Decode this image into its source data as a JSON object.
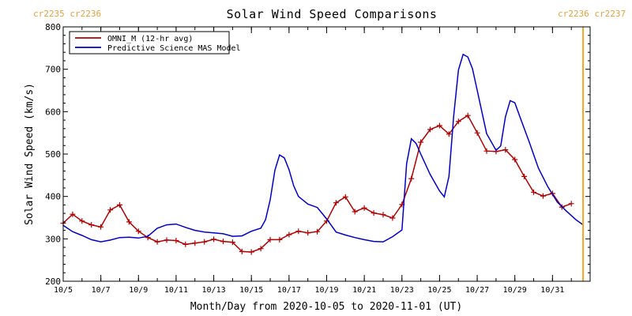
{
  "chart_data": {
    "type": "line",
    "title": "Solar Wind Speed Comparisons",
    "xlabel": "Month/Day from 2020-10-05 to 2020-11-01 (UT)",
    "ylabel": "Solar Wind Speed (km/s)",
    "ylim": [
      200,
      800
    ],
    "yticks": [
      200,
      300,
      400,
      500,
      600,
      700,
      800
    ],
    "xlim": [
      "2020-10-05",
      "2020-11-02"
    ],
    "xticks": [
      {
        "label": "10/5",
        "date": "2020-10-05"
      },
      {
        "label": "10/7",
        "date": "2020-10-07"
      },
      {
        "label": "10/9",
        "date": "2020-10-09"
      },
      {
        "label": "10/11",
        "date": "2020-10-11"
      },
      {
        "label": "10/13",
        "date": "2020-10-13"
      },
      {
        "label": "10/15",
        "date": "2020-10-15"
      },
      {
        "label": "10/17",
        "date": "2020-10-17"
      },
      {
        "label": "10/19",
        "date": "2020-10-19"
      },
      {
        "label": "10/21",
        "date": "2020-10-21"
      },
      {
        "label": "10/23",
        "date": "2020-10-23"
      },
      {
        "label": "10/25",
        "date": "2020-10-25"
      },
      {
        "label": "10/27",
        "date": "2020-10-27"
      },
      {
        "label": "10/29",
        "date": "2020-10-29"
      },
      {
        "label": "10/31",
        "date": "2020-10-31"
      }
    ],
    "carrington_labels": {
      "left": "cr2235 cr2236",
      "right": "cr2236 cr2237"
    },
    "rotation_marker": {
      "date": "2020-11-01 15:00",
      "color": "#f5a623"
    },
    "legend_position": "top-left",
    "grid": false,
    "series": [
      {
        "name": "OMNI_M (12-hr avg)",
        "color": "#b00000",
        "marker": "plus",
        "points": [
          [
            "2020-10-05 00:00",
            337
          ],
          [
            "2020-10-05 12:00",
            358
          ],
          [
            "2020-10-06 00:00",
            342
          ],
          [
            "2020-10-06 12:00",
            333
          ],
          [
            "2020-10-07 00:00",
            328
          ],
          [
            "2020-10-07 12:00",
            368
          ],
          [
            "2020-10-08 00:00",
            380
          ],
          [
            "2020-10-08 12:00",
            340
          ],
          [
            "2020-10-09 00:00",
            318
          ],
          [
            "2020-10-09 12:00",
            303
          ],
          [
            "2020-10-10 00:00",
            293
          ],
          [
            "2020-10-10 12:00",
            297
          ],
          [
            "2020-10-11 00:00",
            296
          ],
          [
            "2020-10-11 12:00",
            287
          ],
          [
            "2020-10-12 00:00",
            290
          ],
          [
            "2020-10-12 12:00",
            293
          ],
          [
            "2020-10-13 00:00",
            299
          ],
          [
            "2020-10-13 12:00",
            294
          ],
          [
            "2020-10-14 00:00",
            292
          ],
          [
            "2020-10-14 12:00",
            270
          ],
          [
            "2020-10-15 00:00",
            269
          ],
          [
            "2020-10-15 12:00",
            277
          ],
          [
            "2020-10-16 00:00",
            298
          ],
          [
            "2020-10-16 12:00",
            298
          ],
          [
            "2020-10-17 00:00",
            310
          ],
          [
            "2020-10-17 12:00",
            318
          ],
          [
            "2020-10-18 00:00",
            314
          ],
          [
            "2020-10-18 12:00",
            317
          ],
          [
            "2020-10-19 00:00",
            342
          ],
          [
            "2020-10-19 12:00",
            385
          ],
          [
            "2020-10-20 00:00",
            399
          ],
          [
            "2020-10-20 12:00",
            364
          ],
          [
            "2020-10-21 00:00",
            373
          ],
          [
            "2020-10-21 12:00",
            361
          ],
          [
            "2020-10-22 00:00",
            357
          ],
          [
            "2020-10-22 12:00",
            349
          ],
          [
            "2020-10-23 00:00",
            381
          ],
          [
            "2020-10-23 12:00",
            442
          ],
          [
            "2020-10-24 00:00",
            528
          ],
          [
            "2020-10-24 12:00",
            558
          ],
          [
            "2020-10-25 00:00",
            567
          ],
          [
            "2020-10-25 12:00",
            547
          ],
          [
            "2020-10-26 00:00",
            577
          ],
          [
            "2020-10-26 12:00",
            591
          ],
          [
            "2020-10-27 00:00",
            550
          ],
          [
            "2020-10-27 12:00",
            507
          ],
          [
            "2020-10-28 00:00",
            506
          ],
          [
            "2020-10-28 12:00",
            510
          ],
          [
            "2020-10-29 00:00",
            487
          ],
          [
            "2020-10-29 12:00",
            447
          ],
          [
            "2020-10-30 00:00",
            410
          ],
          [
            "2020-10-30 12:00",
            401
          ],
          [
            "2020-10-31 00:00",
            407
          ],
          [
            "2020-10-31 12:00",
            375
          ],
          [
            "2020-11-01 00:00",
            383
          ]
        ]
      },
      {
        "name": "Predictive Science MAS Model",
        "color": "#0000c8",
        "marker": "none",
        "points": [
          [
            "2020-10-05 00:00",
            332
          ],
          [
            "2020-10-05 12:00",
            317
          ],
          [
            "2020-10-06 00:00",
            308
          ],
          [
            "2020-10-06 12:00",
            298
          ],
          [
            "2020-10-07 00:00",
            293
          ],
          [
            "2020-10-07 12:00",
            297
          ],
          [
            "2020-10-08 00:00",
            303
          ],
          [
            "2020-10-08 12:00",
            304
          ],
          [
            "2020-10-09 00:00",
            302
          ],
          [
            "2020-10-09 12:00",
            306
          ],
          [
            "2020-10-10 00:00",
            325
          ],
          [
            "2020-10-10 12:00",
            333
          ],
          [
            "2020-10-11 00:00",
            335
          ],
          [
            "2020-10-11 12:00",
            327
          ],
          [
            "2020-10-12 00:00",
            320
          ],
          [
            "2020-10-12 12:00",
            316
          ],
          [
            "2020-10-13 00:00",
            314
          ],
          [
            "2020-10-13 12:00",
            312
          ],
          [
            "2020-10-14 00:00",
            306
          ],
          [
            "2020-10-14 12:00",
            307
          ],
          [
            "2020-10-15 00:00",
            318
          ],
          [
            "2020-10-15 12:00",
            325
          ],
          [
            "2020-10-15 18:00",
            345
          ],
          [
            "2020-10-16 00:00",
            392
          ],
          [
            "2020-10-16 06:00",
            462
          ],
          [
            "2020-10-16 12:00",
            498
          ],
          [
            "2020-10-16 18:00",
            491
          ],
          [
            "2020-10-17 00:00",
            463
          ],
          [
            "2020-10-17 06:00",
            425
          ],
          [
            "2020-10-17 12:00",
            400
          ],
          [
            "2020-10-18 00:00",
            382
          ],
          [
            "2020-10-18 12:00",
            374
          ],
          [
            "2020-10-19 00:00",
            347
          ],
          [
            "2020-10-19 12:00",
            316
          ],
          [
            "2020-10-20 00:00",
            309
          ],
          [
            "2020-10-20 12:00",
            303
          ],
          [
            "2020-10-21 00:00",
            298
          ],
          [
            "2020-10-21 12:00",
            294
          ],
          [
            "2020-10-22 00:00",
            293
          ],
          [
            "2020-10-22 12:00",
            305
          ],
          [
            "2020-10-23 00:00",
            321
          ],
          [
            "2020-10-23 06:00",
            477
          ],
          [
            "2020-10-23 12:00",
            536
          ],
          [
            "2020-10-23 18:00",
            525
          ],
          [
            "2020-10-24 00:00",
            500
          ],
          [
            "2020-10-24 12:00",
            452
          ],
          [
            "2020-10-25 00:00",
            413
          ],
          [
            "2020-10-25 06:00",
            399
          ],
          [
            "2020-10-25 12:00",
            447
          ],
          [
            "2020-10-25 18:00",
            590
          ],
          [
            "2020-10-26 00:00",
            698
          ],
          [
            "2020-10-26 06:00",
            735
          ],
          [
            "2020-10-26 12:00",
            729
          ],
          [
            "2020-10-26 18:00",
            701
          ],
          [
            "2020-10-27 00:00",
            650
          ],
          [
            "2020-10-27 12:00",
            548
          ],
          [
            "2020-10-28 00:00",
            509
          ],
          [
            "2020-10-28 06:00",
            519
          ],
          [
            "2020-10-28 12:00",
            588
          ],
          [
            "2020-10-28 18:00",
            626
          ],
          [
            "2020-10-29 00:00",
            621
          ],
          [
            "2020-10-29 06:00",
            590
          ],
          [
            "2020-10-29 18:00",
            530
          ],
          [
            "2020-10-30 06:00",
            467
          ],
          [
            "2020-10-30 18:00",
            423
          ],
          [
            "2020-10-31 06:00",
            387
          ],
          [
            "2020-10-31 18:00",
            365
          ],
          [
            "2020-11-01 06:00",
            345
          ],
          [
            "2020-11-01 15:00",
            333
          ]
        ]
      }
    ]
  }
}
